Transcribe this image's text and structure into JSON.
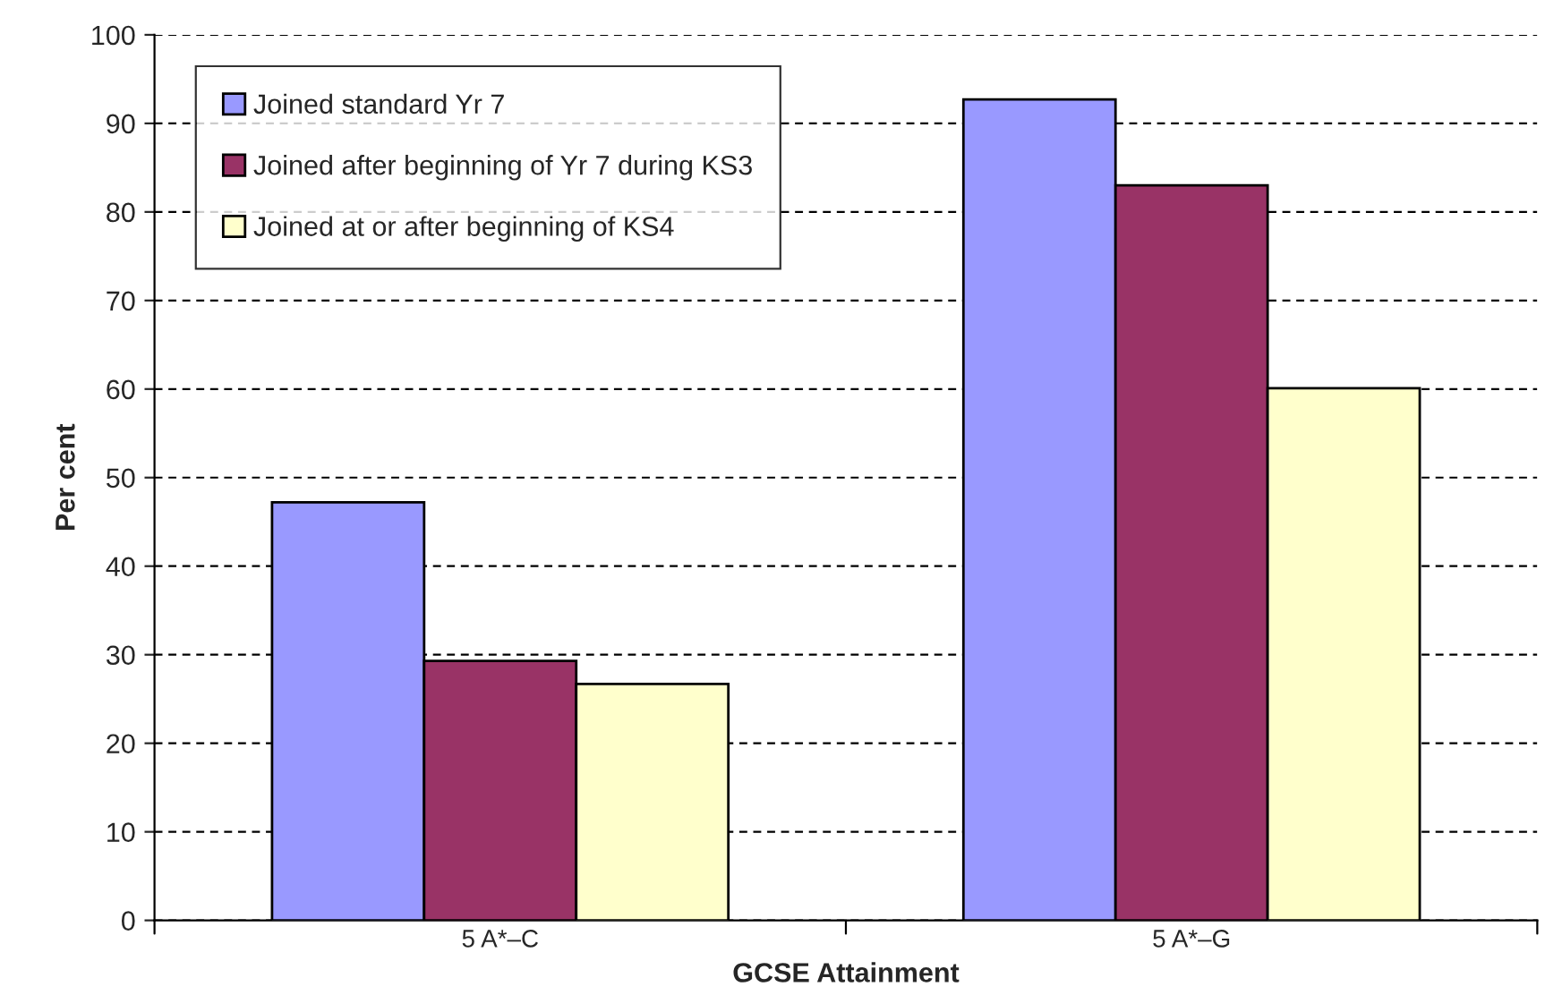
{
  "chart_data": {
    "type": "bar",
    "xlabel": "GCSE Attainment",
    "ylabel": "Per cent",
    "categories": [
      "5 A*–C",
      "5 A*–G"
    ],
    "series": [
      {
        "name": "Joined standard Yr 7",
        "color": "#9999ff",
        "values": [
          47.2,
          92.7
        ]
      },
      {
        "name": "Joined after beginning of Yr 7 during KS3",
        "color": "#993366",
        "values": [
          29.3,
          83.0
        ]
      },
      {
        "name": "Joined at or after beginning of KS4",
        "color": "#ffffcc",
        "values": [
          26.7,
          60.1
        ]
      }
    ],
    "ylim": [
      0,
      100
    ],
    "yticks": [
      0,
      10,
      20,
      30,
      40,
      50,
      60,
      70,
      80,
      90,
      100
    ],
    "grid": "y",
    "legend": "top left"
  }
}
